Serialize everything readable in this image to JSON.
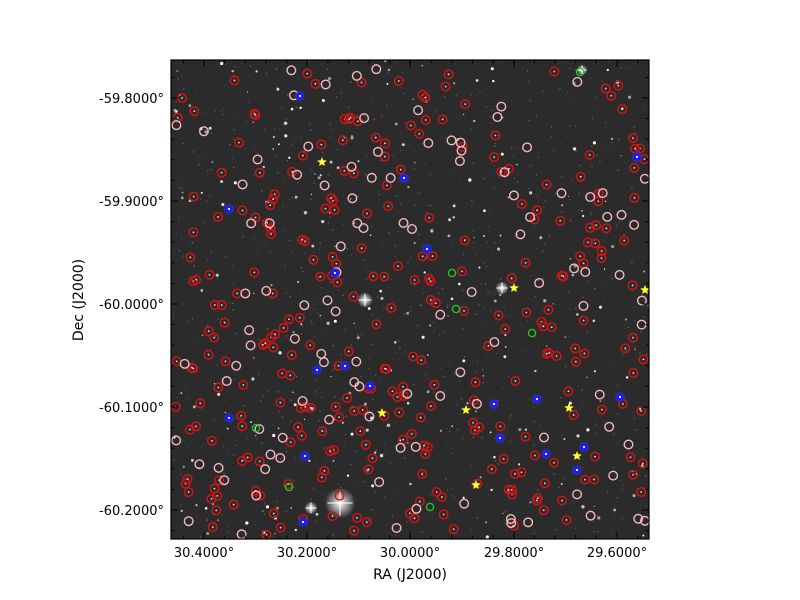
{
  "figure": {
    "xlabel": "RA (J2000)",
    "ylabel": "Dec (J2000)",
    "x_ticks": [
      "30.4000°",
      "30.2000°",
      "30.0000°",
      "29.8000°",
      "29.6000°"
    ],
    "y_ticks": [
      "-59.8000°",
      "-59.9000°",
      "-60.0000°",
      "-60.1000°",
      "-60.2000°"
    ],
    "x_range_ra_deg": [
      30.48,
      29.55
    ],
    "y_range_dec_deg": [
      -59.765,
      -60.23
    ],
    "image_background": "#2b2b2b",
    "colors": {
      "red_marker": "#dd1111",
      "pink_marker": "#f4b8c0",
      "blue_marker": "#1a1aff",
      "green_marker": "#22cc22",
      "yellow_star": "#ffff33",
      "axis": "#000000"
    }
  }
}
